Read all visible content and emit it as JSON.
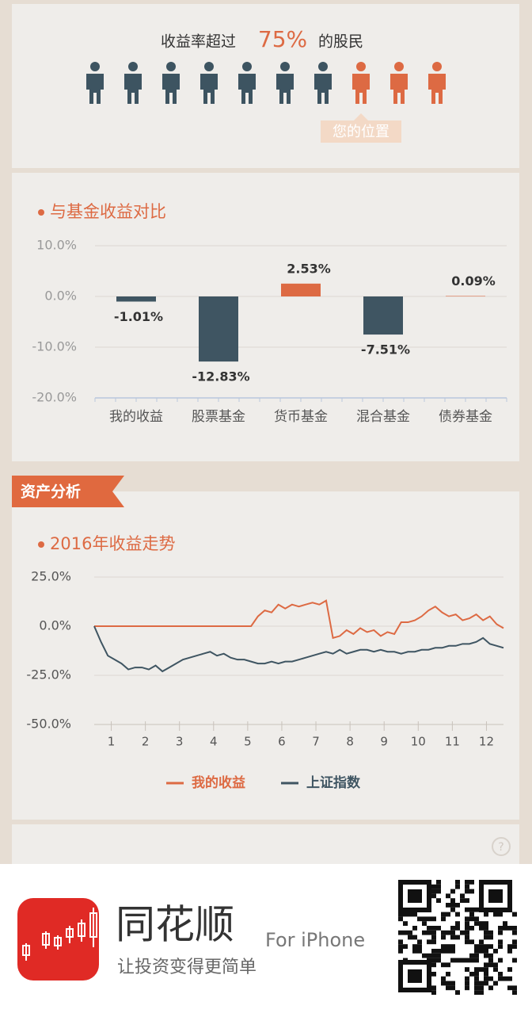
{
  "header": {
    "prefix": "收益率超过",
    "highlight": "75%",
    "suffix": "的股民",
    "marker": "您的位置"
  },
  "section_tag": "资产分析",
  "chart_data": [
    {
      "type": "bar",
      "title": "与基金收益对比",
      "categories": [
        "我的收益",
        "股票基金",
        "货币基金",
        "混合基金",
        "债券基金"
      ],
      "values": [
        -1.01,
        -12.83,
        2.53,
        -7.51,
        0.09
      ],
      "value_labels": [
        "-1.01%",
        "-12.83%",
        "2.53%",
        "-7.51%",
        "0.09%"
      ],
      "colors": [
        "#3f5562",
        "#3f5562",
        "#dd6a43",
        "#3f5562",
        "#dd6a43"
      ],
      "ylim": [
        -20,
        10
      ],
      "yticks": [
        {
          "value": 10,
          "label": "10.0%"
        },
        {
          "value": 0,
          "label": "0.0%"
        },
        {
          "value": -10,
          "label": "-10.0%"
        },
        {
          "value": -20,
          "label": "-20.0%"
        }
      ],
      "grid": true
    },
    {
      "type": "line",
      "title": "2016年收益走势",
      "x": [
        0,
        0.2,
        0.4,
        0.6,
        0.8,
        1,
        1.2,
        1.4,
        1.6,
        1.8,
        2,
        2.2,
        2.4,
        2.6,
        2.8,
        3,
        3.2,
        3.4,
        3.6,
        3.8,
        4,
        4.2,
        4.4,
        4.6,
        4.8,
        5,
        5.2,
        5.4,
        5.6,
        5.8,
        6,
        6.2,
        6.4,
        6.6,
        6.8,
        7,
        7.2,
        7.4,
        7.6,
        7.8,
        8,
        8.2,
        8.4,
        8.6,
        8.8,
        9,
        9.2,
        9.4,
        9.6,
        9.8,
        10,
        10.2,
        10.4,
        10.6,
        10.8,
        11,
        11.2,
        11.4,
        11.6,
        11.8,
        12
      ],
      "series": [
        {
          "name": "我的收益",
          "color": "#dd6a43",
          "values": [
            0,
            0,
            0,
            0,
            0,
            0,
            0,
            0,
            0,
            0,
            0,
            0,
            0,
            0,
            0,
            0,
            0,
            0,
            0,
            0,
            0,
            0,
            0,
            0,
            5,
            8,
            7,
            11,
            9,
            11,
            10,
            11,
            12,
            11,
            13,
            -6,
            -5,
            -2,
            -4,
            -1,
            -3,
            -2,
            -5,
            -3,
            -4,
            2,
            2,
            3,
            5,
            8,
            10,
            7,
            5,
            6,
            3,
            4,
            6,
            3,
            5,
            1,
            -1
          ]
        },
        {
          "name": "上证指数",
          "color": "#3f5562",
          "values": [
            0,
            -8,
            -15,
            -17,
            -19,
            -22,
            -21,
            -21,
            -22,
            -20,
            -23,
            -21,
            -19,
            -17,
            -16,
            -15,
            -14,
            -13,
            -15,
            -14,
            -16,
            -17,
            -17,
            -18,
            -19,
            -19,
            -18,
            -19,
            -18,
            -18,
            -17,
            -16,
            -15,
            -14,
            -13,
            -14,
            -12,
            -14,
            -13,
            -12,
            -12,
            -13,
            -12,
            -13,
            -13,
            -14,
            -13,
            -13,
            -12,
            -12,
            -11,
            -11,
            -10,
            -10,
            -9,
            -9,
            -8,
            -6,
            -9,
            -10,
            -11
          ]
        }
      ],
      "xlim": [
        0,
        12
      ],
      "xticks": [
        {
          "value": 0.5,
          "label": "1"
        },
        {
          "value": 1.5,
          "label": "2"
        },
        {
          "value": 2.5,
          "label": "3"
        },
        {
          "value": 3.5,
          "label": "4"
        },
        {
          "value": 4.5,
          "label": "5"
        },
        {
          "value": 5.5,
          "label": "6"
        },
        {
          "value": 6.5,
          "label": "7"
        },
        {
          "value": 7.5,
          "label": "8"
        },
        {
          "value": 8.5,
          "label": "9"
        },
        {
          "value": 9.5,
          "label": "10"
        },
        {
          "value": 10.5,
          "label": "11"
        },
        {
          "value": 11.5,
          "label": "12"
        }
      ],
      "ylim": [
        -50,
        25
      ],
      "yticks": [
        {
          "value": 25,
          "label": "25.0%"
        },
        {
          "value": 0,
          "label": "0.0%"
        },
        {
          "value": -25,
          "label": "-25.0%"
        },
        {
          "value": -50,
          "label": "-50.0%"
        }
      ],
      "grid": true
    }
  ],
  "banner": {
    "app_name": "同花顺",
    "platform": "For iPhone",
    "slogan": "让投资变得更简单"
  }
}
